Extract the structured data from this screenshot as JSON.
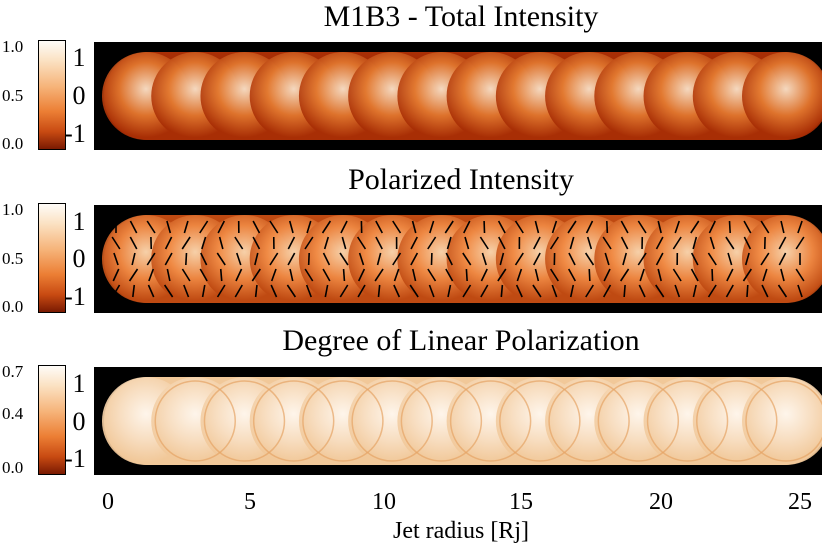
{
  "figure_title": "M1B3 - Total Intensity",
  "panels": [
    {
      "title": "M1B3 - Total Intensity",
      "colorbar_ticks": [
        "1.0",
        "0.5",
        "0.0"
      ],
      "y_ticks": [
        "1",
        "0",
        "-1"
      ],
      "colors": {
        "edge": "#a82e05",
        "mid": "#e2782f",
        "bright": "#fbe7cf"
      }
    },
    {
      "title": "Polarized Intensity",
      "colorbar_ticks": [
        "1.0",
        "0.5",
        "0.0"
      ],
      "y_ticks": [
        "1",
        "0",
        "-1"
      ],
      "colors": {
        "edge": "#bf4a12",
        "mid": "#f08a44",
        "bright": "#fbdcb6"
      }
    },
    {
      "title": "Degree of Linear Polarization",
      "colorbar_ticks": [
        "0.7",
        "0.4",
        "0.0"
      ],
      "y_ticks": [
        "1",
        "0",
        "-1"
      ],
      "colors": {
        "edge": "#f1c899",
        "mid": "#f8dfc3",
        "bright": "#fff9f2"
      }
    }
  ],
  "x_axis": {
    "label": "Jet radius [Rj]",
    "ticks": [
      0,
      5,
      10,
      15,
      20,
      25
    ]
  },
  "knots": 14
}
